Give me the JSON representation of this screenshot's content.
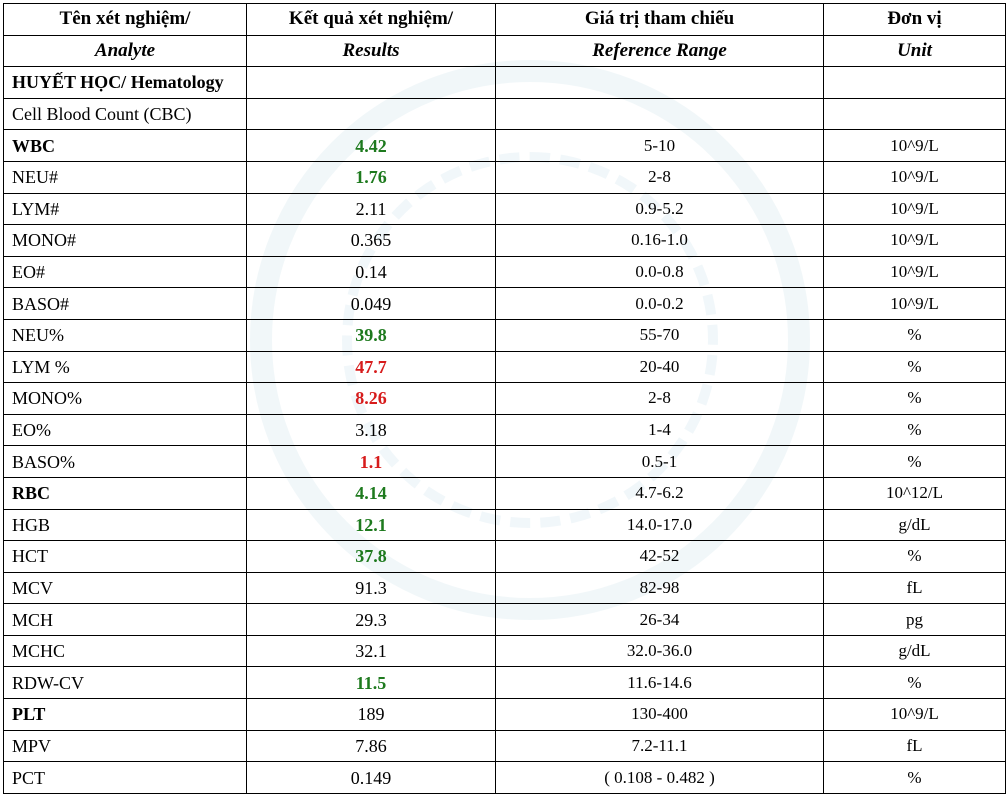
{
  "header": {
    "col1_vi": "Tên xét nghiệm/",
    "col1_en": "Analyte",
    "col2_vi": "Kết quả xét nghiệm/",
    "col2_en": "Results",
    "col3_vi": "Giá trị tham chiếu",
    "col3_en": "Reference Range",
    "col4_vi": "Đơn vị",
    "col4_en": "Unit"
  },
  "section": "HUYẾT HỌC/ Hematology",
  "subsection": "Cell Blood Count (CBC)",
  "colors": {
    "low": "#1e7a1e",
    "high": "#d71c1c"
  },
  "rows": [
    {
      "analyte": "WBC",
      "result": "4.42",
      "reference": "5-10",
      "unit": "10^9/L",
      "flag": "low",
      "bold": true
    },
    {
      "analyte": "NEU#",
      "result": "1.76",
      "reference": "2-8",
      "unit": "10^9/L",
      "flag": "low",
      "bold": false
    },
    {
      "analyte": "LYM#",
      "result": "2.11",
      "reference": "0.9-5.2",
      "unit": "10^9/L",
      "flag": "",
      "bold": false
    },
    {
      "analyte": "MONO#",
      "result": "0.365",
      "reference": "0.16-1.0",
      "unit": "10^9/L",
      "flag": "",
      "bold": false
    },
    {
      "analyte": "EO#",
      "result": "0.14",
      "reference": "0.0-0.8",
      "unit": "10^9/L",
      "flag": "",
      "bold": false
    },
    {
      "analyte": "BASO#",
      "result": "0.049",
      "reference": "0.0-0.2",
      "unit": "10^9/L",
      "flag": "",
      "bold": false
    },
    {
      "analyte": "NEU%",
      "result": "39.8",
      "reference": "55-70",
      "unit": "%",
      "flag": "low",
      "bold": false
    },
    {
      "analyte": "LYM %",
      "result": "47.7",
      "reference": "20-40",
      "unit": "%",
      "flag": "high",
      "bold": false
    },
    {
      "analyte": "MONO%",
      "result": "8.26",
      "reference": "2-8",
      "unit": "%",
      "flag": "high",
      "bold": false
    },
    {
      "analyte": "EO%",
      "result": "3.18",
      "reference": "1-4",
      "unit": "%",
      "flag": "",
      "bold": false
    },
    {
      "analyte": "BASO%",
      "result": "1.1",
      "reference": "0.5-1",
      "unit": "%",
      "flag": "high",
      "bold": false
    },
    {
      "analyte": "RBC",
      "result": "4.14",
      "reference": "4.7-6.2",
      "unit": "10^12/L",
      "flag": "low",
      "bold": true
    },
    {
      "analyte": "HGB",
      "result": "12.1",
      "reference": "14.0-17.0",
      "unit": "g/dL",
      "flag": "low",
      "bold": false
    },
    {
      "analyte": "HCT",
      "result": "37.8",
      "reference": "42-52",
      "unit": "%",
      "flag": "low",
      "bold": false
    },
    {
      "analyte": "MCV",
      "result": "91.3",
      "reference": "82-98",
      "unit": "fL",
      "flag": "",
      "bold": false
    },
    {
      "analyte": "MCH",
      "result": "29.3",
      "reference": "26-34",
      "unit": "pg",
      "flag": "",
      "bold": false
    },
    {
      "analyte": "MCHC",
      "result": "32.1",
      "reference": "32.0-36.0",
      "unit": "g/dL",
      "flag": "",
      "bold": false
    },
    {
      "analyte": "RDW-CV",
      "result": "11.5",
      "reference": "11.6-14.6",
      "unit": "%",
      "flag": "low",
      "bold": false
    },
    {
      "analyte": "PLT",
      "result": "189",
      "reference": "130-400",
      "unit": "10^9/L",
      "flag": "",
      "bold": true
    },
    {
      "analyte": "MPV",
      "result": "7.86",
      "reference": "7.2-11.1",
      "unit": "fL",
      "flag": "",
      "bold": false
    },
    {
      "analyte": "PCT",
      "result": "0.149",
      "reference": "( 0.108 - 0.482 )",
      "unit": "%",
      "flag": "",
      "bold": false
    }
  ]
}
